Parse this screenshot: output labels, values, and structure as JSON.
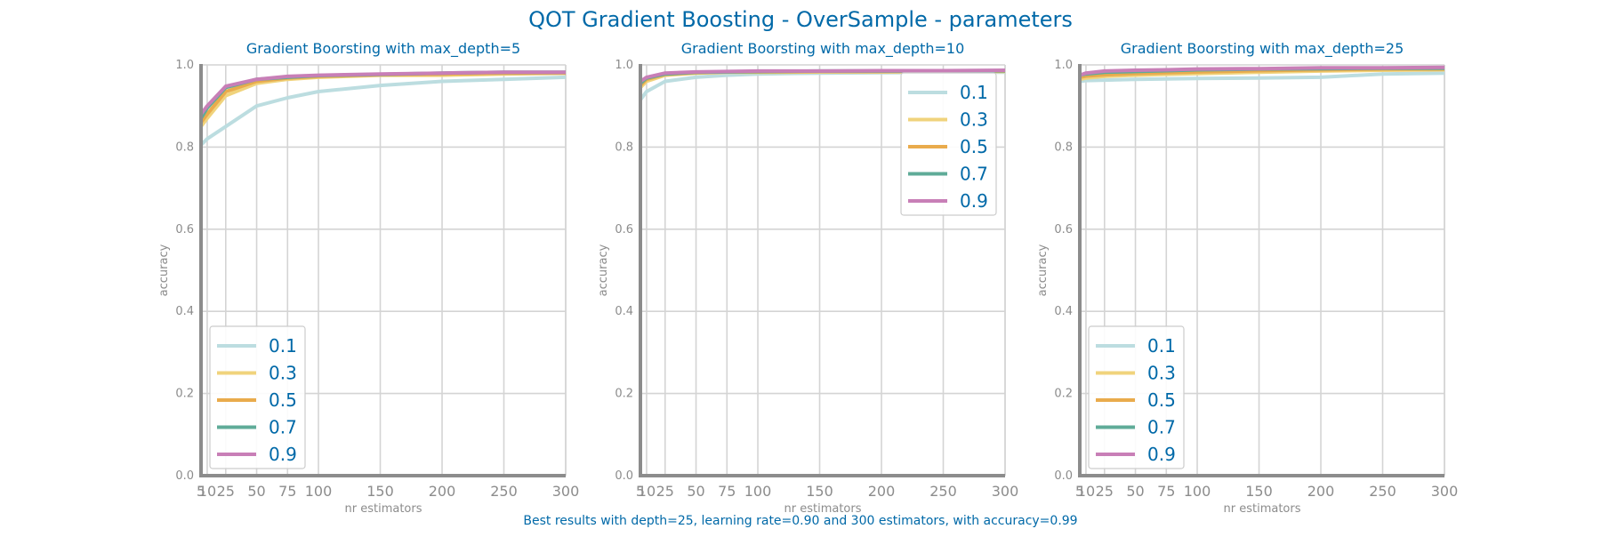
{
  "figure": {
    "title": "QOT Gradient Boosting - OverSample - parameters",
    "footer": "Best results with depth=25, learning rate=0.90 and 300 estimators, with accuracy=0.99"
  },
  "colors": {
    "0.1": "#bcdde0",
    "0.3": "#f0d37c",
    "0.5": "#e9ab4c",
    "0.7": "#5fab98",
    "0.9": "#c87fb7"
  },
  "chart_data": [
    {
      "type": "line",
      "title": "Gradient Boorsting with max_depth=5",
      "xlabel": "nr estimators",
      "ylabel": "accuracy",
      "xlim": [
        5,
        300
      ],
      "ylim": [
        0,
        1
      ],
      "x": [
        5,
        10,
        25,
        50,
        75,
        100,
        150,
        200,
        250,
        300
      ],
      "x_tick_labels": [
        "5",
        "10",
        "25",
        "50",
        "75",
        "100",
        "150",
        "200",
        "250",
        "300"
      ],
      "y_ticks": [
        "0.0",
        "0.2",
        "0.4",
        "0.6",
        "0.8",
        "1.0"
      ],
      "grid": true,
      "legend_position": "lower-left",
      "series": [
        {
          "name": "0.1",
          "values": [
            0.805,
            0.82,
            0.85,
            0.9,
            0.92,
            0.935,
            0.95,
            0.96,
            0.965,
            0.97
          ]
        },
        {
          "name": "0.3",
          "values": [
            0.85,
            0.87,
            0.925,
            0.955,
            0.965,
            0.97,
            0.975,
            0.975,
            0.978,
            0.98
          ]
        },
        {
          "name": "0.5",
          "values": [
            0.86,
            0.88,
            0.935,
            0.96,
            0.968,
            0.972,
            0.976,
            0.978,
            0.98,
            0.98
          ]
        },
        {
          "name": "0.7",
          "values": [
            0.87,
            0.895,
            0.945,
            0.965,
            0.97,
            0.974,
            0.977,
            0.98,
            0.982,
            0.982
          ]
        },
        {
          "name": "0.9",
          "values": [
            0.88,
            0.9,
            0.948,
            0.965,
            0.972,
            0.975,
            0.978,
            0.98,
            0.982,
            0.982
          ]
        }
      ]
    },
    {
      "type": "line",
      "title": "Gradient Boorsting with max_depth=10",
      "xlabel": "nr estimators",
      "ylabel": "accuracy",
      "xlim": [
        5,
        300
      ],
      "ylim": [
        0,
        1
      ],
      "x": [
        5,
        10,
        25,
        50,
        75,
        100,
        150,
        200,
        250,
        300
      ],
      "x_tick_labels": [
        "5",
        "10",
        "25",
        "50",
        "75",
        "100",
        "150",
        "200",
        "250",
        "300"
      ],
      "y_ticks": [
        "0.0",
        "0.2",
        "0.4",
        "0.6",
        "0.8",
        "1.0"
      ],
      "grid": true,
      "legend_position": "upper-right",
      "series": [
        {
          "name": "0.1",
          "values": [
            0.915,
            0.935,
            0.96,
            0.97,
            0.975,
            0.978,
            0.98,
            0.981,
            0.982,
            0.982
          ]
        },
        {
          "name": "0.3",
          "values": [
            0.945,
            0.96,
            0.975,
            0.98,
            0.982,
            0.982,
            0.983,
            0.983,
            0.984,
            0.984
          ]
        },
        {
          "name": "0.5",
          "values": [
            0.95,
            0.965,
            0.977,
            0.981,
            0.983,
            0.983,
            0.984,
            0.984,
            0.985,
            0.985
          ]
        },
        {
          "name": "0.7",
          "values": [
            0.955,
            0.968,
            0.978,
            0.982,
            0.983,
            0.984,
            0.985,
            0.985,
            0.985,
            0.986
          ]
        },
        {
          "name": "0.9",
          "values": [
            0.96,
            0.97,
            0.98,
            0.983,
            0.984,
            0.985,
            0.985,
            0.986,
            0.986,
            0.987
          ]
        }
      ]
    },
    {
      "type": "line",
      "title": "Gradient Boorsting with max_depth=25",
      "xlabel": "nr estimators",
      "ylabel": "accuracy",
      "xlim": [
        5,
        300
      ],
      "ylim": [
        0,
        1
      ],
      "x": [
        5,
        10,
        25,
        50,
        75,
        100,
        150,
        200,
        250,
        300
      ],
      "x_tick_labels": [
        "5",
        "10",
        "25",
        "50",
        "75",
        "100",
        "150",
        "200",
        "250",
        "300"
      ],
      "y_ticks": [
        "0.0",
        "0.2",
        "0.4",
        "0.6",
        "0.8",
        "1.0"
      ],
      "grid": true,
      "legend_position": "lower-left",
      "series": [
        {
          "name": "0.1",
          "values": [
            0.96,
            0.962,
            0.963,
            0.965,
            0.966,
            0.967,
            0.968,
            0.97,
            0.978,
            0.98
          ]
        },
        {
          "name": "0.3",
          "values": [
            0.965,
            0.968,
            0.972,
            0.975,
            0.977,
            0.979,
            0.982,
            0.985,
            0.987,
            0.988
          ]
        },
        {
          "name": "0.5",
          "values": [
            0.97,
            0.973,
            0.976,
            0.979,
            0.981,
            0.983,
            0.986,
            0.988,
            0.99,
            0.99
          ]
        },
        {
          "name": "0.7",
          "values": [
            0.975,
            0.978,
            0.982,
            0.984,
            0.986,
            0.988,
            0.99,
            0.991,
            0.992,
            0.992
          ]
        },
        {
          "name": "0.9",
          "values": [
            0.975,
            0.98,
            0.985,
            0.987,
            0.988,
            0.99,
            0.991,
            0.993,
            0.993,
            0.994
          ]
        }
      ]
    }
  ]
}
